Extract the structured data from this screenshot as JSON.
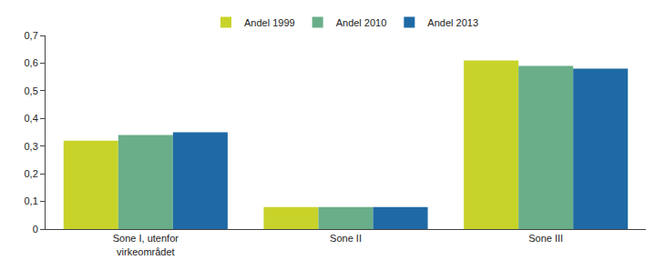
{
  "chart_data": {
    "type": "bar",
    "categories": [
      "Sone I, utenfor virkeområdet",
      "Sone II",
      "Sone III"
    ],
    "series": [
      {
        "name": "Andel 1999",
        "color": "#c8d32a",
        "values": [
          0.32,
          0.08,
          0.61
        ]
      },
      {
        "name": "Andel 2010",
        "color": "#69ae89",
        "values": [
          0.34,
          0.08,
          0.59
        ]
      },
      {
        "name": "Andel 2013",
        "color": "#1f6aa5",
        "values": [
          0.35,
          0.08,
          0.58
        ]
      }
    ],
    "ylim": [
      0,
      0.7
    ],
    "yticks": [
      0,
      {
        "value": 0.1,
        "label": "0,1"
      },
      {
        "value": 0.2,
        "label": "0,2"
      },
      {
        "value": 0.3,
        "label": "0,3"
      },
      {
        "value": 0.4,
        "label": "0,4"
      },
      {
        "value": 0.5,
        "label": "0,5"
      },
      {
        "value": 0.6,
        "label": "0,6"
      },
      {
        "value": 0.7,
        "label": "0,7"
      }
    ],
    "grid": false,
    "legend": "top"
  }
}
